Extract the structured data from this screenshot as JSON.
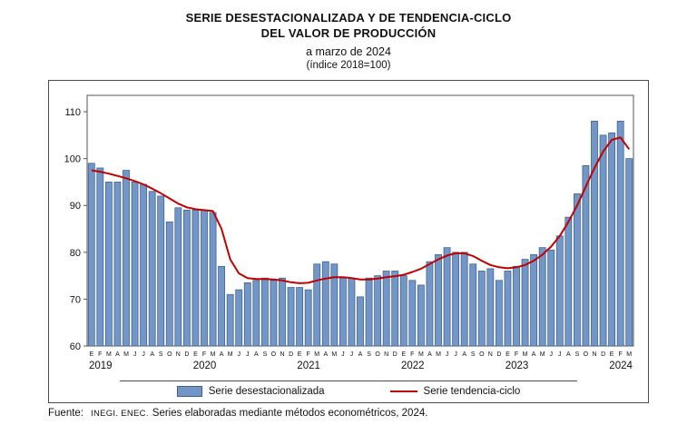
{
  "header": {
    "line1": "SERIE DESESTACIONALIZADA Y DE TENDENCIA-CICLO",
    "line2": "DEL VALOR DE PRODUCCIÓN",
    "line3": "a marzo de 2024",
    "line4": "(índice 2018=100)"
  },
  "footer": {
    "label": "Fuente:",
    "source": "INEGI. ENEC.",
    "text": "Series elaboradas mediante métodos econométricos, 2024."
  },
  "chart_data": {
    "type": "bar",
    "title": "SERIE DESESTACIONALIZADA Y DE TENDENCIA-CICLO DEL VALOR DE PRODUCCIÓN",
    "subtitle": "a marzo de 2024 (índice 2018=100)",
    "month_letters": [
      "E",
      "F",
      "M",
      "A",
      "M",
      "J",
      "J",
      "A",
      "S",
      "O",
      "N",
      "D"
    ],
    "years": [
      "2019",
      "2020",
      "2021",
      "2022",
      "2023",
      "2024"
    ],
    "months_per_year": [
      12,
      12,
      12,
      12,
      12,
      3
    ],
    "ylim": [
      60,
      113.5
    ],
    "yticks": [
      60,
      70,
      80,
      90,
      100,
      110
    ],
    "grid": false,
    "legend_position": "bottom",
    "series": [
      {
        "name": "Serie desestacionalizada",
        "type": "bar",
        "color": "#7396C8",
        "stroke": "#3E5F8A",
        "values": [
          99,
          98,
          95,
          95,
          97.5,
          95,
          94.5,
          93,
          92,
          86.5,
          89.5,
          89,
          89,
          89,
          88.5,
          77,
          71,
          72,
          73.5,
          74,
          74.5,
          74,
          74.5,
          72.5,
          72.5,
          72,
          77.5,
          78,
          77.5,
          74.5,
          74.5,
          70.5,
          74.5,
          75,
          76,
          76,
          75,
          74,
          73,
          78,
          79.5,
          81,
          80,
          80,
          77.5,
          76,
          76.5,
          74,
          76,
          77,
          78.5,
          79.5,
          81,
          80.5,
          83.5,
          87.5,
          92.5,
          98.5,
          108,
          105,
          105.5,
          108,
          100
        ]
      },
      {
        "name": "Serie tendencia-ciclo",
        "type": "line",
        "color": "#C00000",
        "values": [
          97.5,
          97.2,
          96.8,
          96.3,
          95.8,
          95.2,
          94.5,
          93.6,
          92.6,
          91.5,
          90.4,
          89.6,
          89.2,
          89,
          88.8,
          85,
          78.5,
          75.5,
          74.5,
          74.3,
          74.3,
          74.2,
          74,
          73.6,
          73.4,
          73.5,
          74,
          74.4,
          74.7,
          74.7,
          74.5,
          74.2,
          74.2,
          74.4,
          74.7,
          74.9,
          75.2,
          75.8,
          76.5,
          77.5,
          78.5,
          79.3,
          79.8,
          79.8,
          79.2,
          78.2,
          77.3,
          76.8,
          76.6,
          76.8,
          77.3,
          78.2,
          79.5,
          81.2,
          83.5,
          86.5,
          90,
          94,
          98,
          101.5,
          104,
          104.5,
          102
        ]
      }
    ]
  }
}
